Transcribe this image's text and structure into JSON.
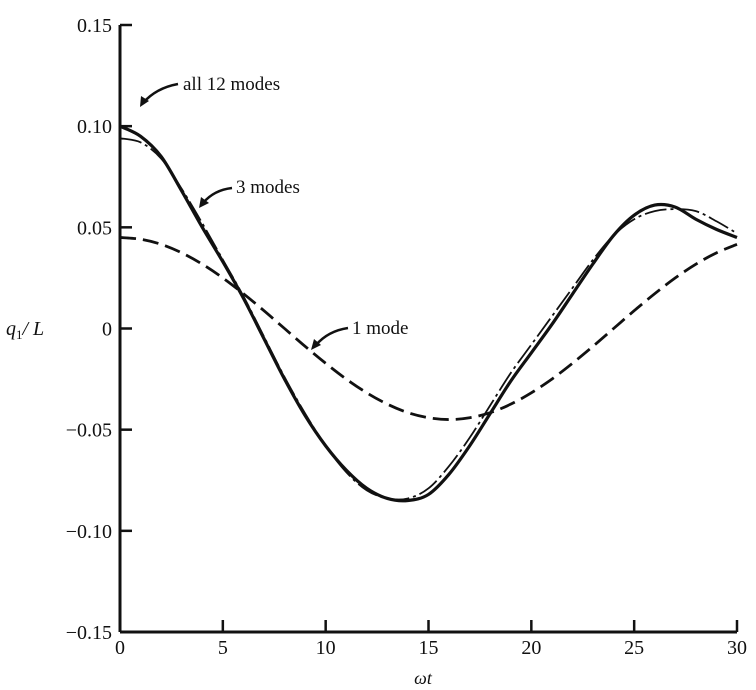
{
  "chart_data": {
    "type": "line",
    "title": "",
    "xlabel": "ωt",
    "ylabel_main": "q",
    "ylabel_sub": "1",
    "ylabel_tail": "/ L",
    "xlim": [
      0,
      30
    ],
    "ylim": [
      -0.15,
      0.15
    ],
    "grid": false,
    "x_ticks": [
      0,
      5,
      10,
      15,
      20,
      25,
      30
    ],
    "x_tick_labels": [
      "0",
      "5",
      "10",
      "15",
      "20",
      "25",
      "30"
    ],
    "y_ticks": [
      0.15,
      0.1,
      0.05,
      0,
      -0.05,
      -0.1,
      -0.15
    ],
    "y_tick_labels": [
      "0.15",
      "0.10",
      "0.05",
      "0",
      "−0.05",
      "−0.10",
      "−0.15"
    ],
    "x": [
      0,
      1,
      2,
      3,
      4,
      5,
      6,
      7,
      8,
      9,
      10,
      11,
      12,
      13,
      14,
      15,
      16,
      17,
      18,
      19,
      20,
      21,
      22,
      23,
      24,
      25,
      26,
      27,
      28,
      29,
      30
    ],
    "series": [
      {
        "name": "all 12 modes",
        "style": "solid-thick",
        "color": "#111111",
        "values": [
          0.1,
          0.095,
          0.085,
          0.068,
          0.05,
          0.033,
          0.015,
          -0.005,
          -0.025,
          -0.043,
          -0.058,
          -0.07,
          -0.079,
          -0.084,
          -0.085,
          -0.082,
          -0.072,
          -0.058,
          -0.042,
          -0.026,
          -0.012,
          0.002,
          0.017,
          0.032,
          0.046,
          0.056,
          0.061,
          0.06,
          0.054,
          0.049,
          0.045
        ]
      },
      {
        "name": "3 modes",
        "style": "dash-dot",
        "color": "#111111",
        "values": [
          0.094,
          0.092,
          0.084,
          0.069,
          0.052,
          0.034,
          0.016,
          -0.004,
          -0.024,
          -0.042,
          -0.058,
          -0.071,
          -0.08,
          -0.084,
          -0.084,
          -0.079,
          -0.068,
          -0.054,
          -0.038,
          -0.022,
          -0.008,
          0.006,
          0.02,
          0.034,
          0.046,
          0.054,
          0.058,
          0.059,
          0.058,
          0.053,
          0.047
        ]
      },
      {
        "name": "1 mode",
        "style": "dashed",
        "color": "#111111",
        "values": [
          0.045,
          0.0441,
          0.0416,
          0.0374,
          0.0318,
          0.025,
          0.0172,
          0.0088,
          0,
          -0.0088,
          -0.0172,
          -0.025,
          -0.0318,
          -0.0374,
          -0.0416,
          -0.0441,
          -0.045,
          -0.0441,
          -0.0416,
          -0.0374,
          -0.0318,
          -0.025,
          -0.0172,
          -0.0088,
          0,
          0.0088,
          0.0172,
          0.025,
          0.0318,
          0.0374,
          0.0416
        ]
      }
    ],
    "annotations": [
      "all 12 modes",
      "3 modes",
      "1 mode"
    ]
  }
}
